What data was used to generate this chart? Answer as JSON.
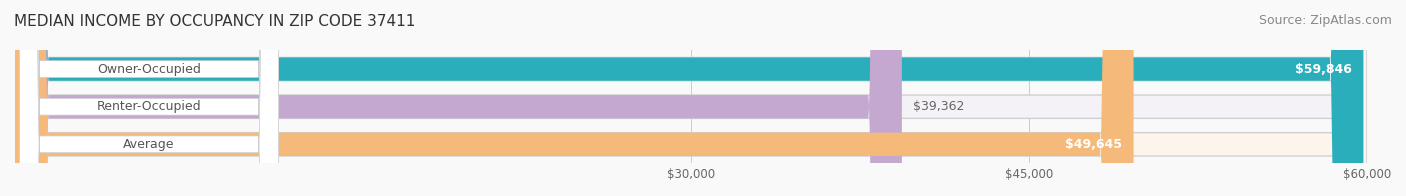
{
  "title": "MEDIAN INCOME BY OCCUPANCY IN ZIP CODE 37411",
  "source": "Source: ZipAtlas.com",
  "categories": [
    "Owner-Occupied",
    "Renter-Occupied",
    "Average"
  ],
  "values": [
    59846,
    39362,
    49645
  ],
  "bar_colors": [
    "#2BAEBC",
    "#C4A8D0",
    "#F5B97A"
  ],
  "label_colors": [
    "#ffffff",
    "#888888",
    "#ffffff"
  ],
  "label_positions": [
    "inside_end",
    "outside_end",
    "inside_end"
  ],
  "value_labels": [
    "$59,846",
    "$39,362",
    "$49,645"
  ],
  "bg_colors": [
    "#e8f7f8",
    "#f5f2f7",
    "#fdf4ec"
  ],
  "xlim": [
    0,
    60000
  ],
  "xticks": [
    30000,
    45000,
    60000
  ],
  "xtick_labels": [
    "$30,000",
    "$45,000",
    "$60,000"
  ],
  "figsize": [
    14.06,
    1.96
  ],
  "dpi": 100,
  "title_fontsize": 11,
  "source_fontsize": 9,
  "bar_label_fontsize": 9,
  "category_fontsize": 9,
  "tick_fontsize": 8.5,
  "bar_height": 0.62,
  "bar_gap": 0.15
}
